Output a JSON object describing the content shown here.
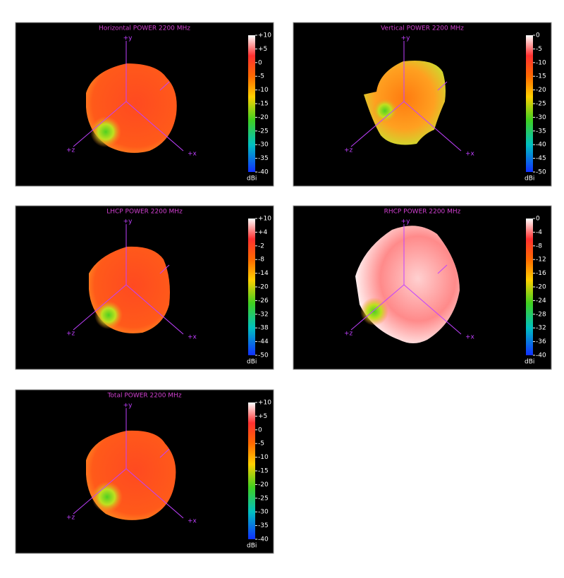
{
  "chart_data": [
    {
      "type": "surface3d",
      "title": "Horizontal POWER 2200  MHz",
      "colorbar_label": "dBi",
      "x_axis_label": "+x",
      "y_axis_label": "+y",
      "z_axis_label": "+z",
      "clim": [
        -40,
        10
      ],
      "cticks": [
        {
          "value": 10,
          "label": "+10"
        },
        {
          "value": 5,
          "label": "+5"
        },
        0,
        -5,
        -10,
        -15,
        -20,
        -25,
        -30,
        -35,
        -40
      ]
    },
    {
      "type": "surface3d",
      "title": "Vertical POWER 2200  MHz",
      "colorbar_label": "dBi",
      "x_axis_label": "+x",
      "y_axis_label": "+y",
      "z_axis_label": "+z",
      "clim": [
        -50,
        0
      ],
      "cticks": [
        0,
        -5,
        -10,
        -15,
        -20,
        -25,
        -30,
        -35,
        -40,
        -45,
        -50
      ]
    },
    {
      "type": "surface3d",
      "title": "LHCP POWER 2200  MHz",
      "colorbar_label": "dBi",
      "x_axis_label": "+x",
      "y_axis_label": "+y",
      "z_axis_label": "+z",
      "clim": [
        -50,
        10
      ],
      "cticks": [
        {
          "value": 10,
          "label": "+10"
        },
        {
          "value": 4,
          "label": "+4"
        },
        -2,
        -8,
        -14,
        -20,
        -26,
        -32,
        -38,
        -44,
        -50
      ]
    },
    {
      "type": "surface3d",
      "title": "RHCP POWER 2200  MHz",
      "colorbar_label": "dBi",
      "x_axis_label": "+x",
      "y_axis_label": "+y",
      "z_axis_label": "+z",
      "clim": [
        -40,
        0
      ],
      "cticks": [
        0,
        -4,
        -8,
        -12,
        -16,
        -20,
        -24,
        -28,
        -32,
        -36,
        -40
      ]
    },
    {
      "type": "surface3d",
      "title": "Total POWER 2200  MHz",
      "colorbar_label": "dBi",
      "x_axis_label": "+x",
      "y_axis_label": "+y",
      "z_axis_label": "+z",
      "clim": [
        -40,
        10
      ],
      "cticks": [
        {
          "value": 10,
          "label": "+10"
        },
        {
          "value": 5,
          "label": "+5"
        },
        0,
        -5,
        -10,
        -15,
        -20,
        -25,
        -30,
        -35,
        -40
      ]
    }
  ]
}
